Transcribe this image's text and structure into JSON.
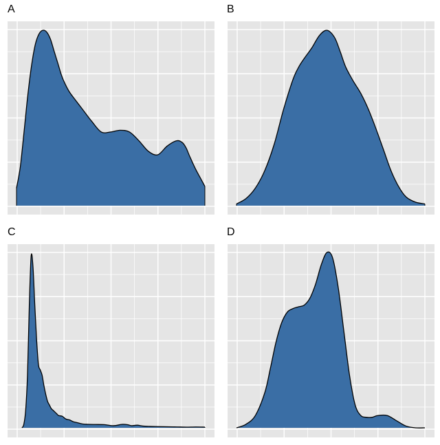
{
  "chart_data": [
    {
      "type": "area",
      "panel": "A",
      "fill": "#3A6EA5",
      "panel_background": "#E5E5E5",
      "grid": true,
      "xlim": [
        0,
        100
      ],
      "ylim": [
        0,
        1.0
      ],
      "x": [
        0,
        2,
        4,
        6,
        8,
        10,
        12,
        14,
        16,
        18,
        20,
        22,
        24,
        26,
        28,
        30,
        35,
        40,
        45,
        50,
        55,
        60,
        65,
        70,
        75,
        80,
        85,
        88,
        90,
        92,
        95,
        98,
        100
      ],
      "y": [
        0.1,
        0.22,
        0.42,
        0.63,
        0.8,
        0.92,
        0.98,
        1.0,
        0.99,
        0.95,
        0.88,
        0.81,
        0.74,
        0.69,
        0.65,
        0.62,
        0.55,
        0.48,
        0.42,
        0.42,
        0.43,
        0.42,
        0.37,
        0.31,
        0.29,
        0.34,
        0.37,
        0.36,
        0.33,
        0.28,
        0.21,
        0.15,
        0.11
      ]
    },
    {
      "type": "area",
      "panel": "B",
      "fill": "#3A6EA5",
      "panel_background": "#E5E5E5",
      "grid": true,
      "xlim": [
        0,
        100
      ],
      "ylim": [
        0,
        1.0
      ],
      "x": [
        0,
        5,
        10,
        15,
        20,
        25,
        30,
        33,
        36,
        40,
        44,
        48,
        52,
        55,
        58,
        62,
        66,
        70,
        74,
        78,
        82,
        86,
        90,
        95,
        100
      ],
      "y": [
        0.01,
        0.04,
        0.1,
        0.2,
        0.35,
        0.55,
        0.72,
        0.79,
        0.84,
        0.9,
        0.97,
        1.0,
        0.96,
        0.88,
        0.79,
        0.71,
        0.64,
        0.55,
        0.44,
        0.32,
        0.2,
        0.11,
        0.05,
        0.02,
        0.01
      ]
    },
    {
      "type": "area",
      "panel": "C",
      "fill": "#3A6EA5",
      "panel_background": "#E5E5E5",
      "grid": true,
      "xlim": [
        0,
        100
      ],
      "ylim": [
        0,
        1.0
      ],
      "x": [
        0,
        1,
        2,
        3,
        4,
        5,
        6,
        7,
        8,
        9,
        10,
        11,
        12,
        13,
        14,
        15,
        16,
        17,
        18,
        19,
        20,
        22,
        24,
        26,
        28,
        30,
        33,
        36,
        40,
        45,
        50,
        55,
        58,
        60,
        63,
        66,
        70,
        75,
        80,
        85,
        90,
        95,
        100
      ],
      "y": [
        0.0,
        0.02,
        0.1,
        0.3,
        0.7,
        0.98,
        0.92,
        0.7,
        0.5,
        0.36,
        0.33,
        0.3,
        0.24,
        0.19,
        0.15,
        0.13,
        0.11,
        0.1,
        0.09,
        0.08,
        0.07,
        0.066,
        0.05,
        0.045,
        0.035,
        0.03,
        0.022,
        0.02,
        0.019,
        0.018,
        0.012,
        0.02,
        0.017,
        0.012,
        0.015,
        0.01,
        0.008,
        0.007,
        0.006,
        0.005,
        0.004,
        0.005,
        0.004
      ]
    },
    {
      "type": "area",
      "panel": "D",
      "fill": "#3A6EA5",
      "panel_background": "#E5E5E5",
      "grid": true,
      "xlim": [
        0,
        100
      ],
      "ylim": [
        0,
        1.0
      ],
      "x": [
        0,
        5,
        10,
        15,
        18,
        21,
        24,
        27,
        30,
        33,
        36,
        39,
        42,
        45,
        48,
        51,
        54,
        57,
        60,
        63,
        66,
        69,
        72,
        75,
        80,
        85,
        90,
        95,
        100
      ],
      "y": [
        0.0,
        0.02,
        0.07,
        0.2,
        0.34,
        0.49,
        0.6,
        0.66,
        0.68,
        0.69,
        0.7,
        0.74,
        0.82,
        0.93,
        1.0,
        0.97,
        0.8,
        0.55,
        0.3,
        0.13,
        0.07,
        0.06,
        0.06,
        0.07,
        0.07,
        0.04,
        0.01,
        0.0,
        0.0
      ]
    }
  ],
  "panels": [
    {
      "label": "A"
    },
    {
      "label": "B"
    },
    {
      "label": "C"
    },
    {
      "label": "D"
    }
  ]
}
